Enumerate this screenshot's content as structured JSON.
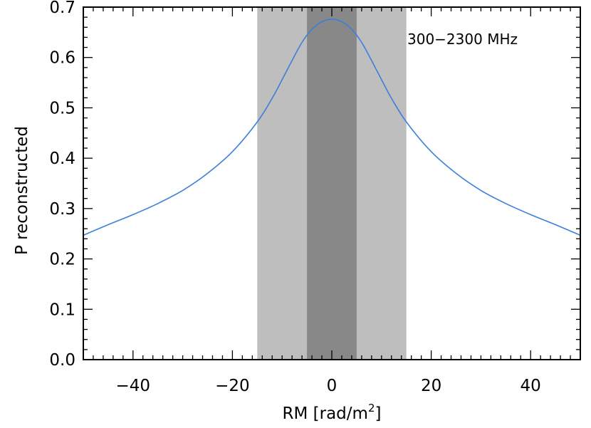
{
  "chart_data": {
    "type": "line",
    "title": "",
    "xlabel": "RM [rad/m",
    "xlabel_sup": "2",
    "xlabel_end": "]",
    "ylabel": "P reconstructed",
    "xlim": [
      -50,
      50
    ],
    "ylim": [
      0.0,
      0.7
    ],
    "x_ticks": [
      -40,
      -20,
      0,
      20,
      40
    ],
    "x_tick_labels": [
      "−40",
      "−20",
      "0",
      "20",
      "40"
    ],
    "y_ticks": [
      0.0,
      0.1,
      0.2,
      0.3,
      0.4,
      0.5,
      0.6,
      0.7
    ],
    "y_tick_labels": [
      "0.0",
      "0.1",
      "0.2",
      "0.3",
      "0.4",
      "0.5",
      "0.6",
      "0.7"
    ],
    "grid": false,
    "annotation": "300−2300 MHz",
    "shaded_bands": [
      {
        "x_from": -15,
        "x_to": 15,
        "color": "#bebebe"
      },
      {
        "x_from": -5,
        "x_to": 5,
        "color": "#888888"
      }
    ],
    "series": [
      {
        "color": "#3d7fd9",
        "x": [
          -50,
          -45,
          -40,
          -35,
          -30,
          -25,
          -20,
          -15,
          -12,
          -10,
          -8,
          -6,
          -4,
          -2,
          0,
          2,
          4,
          6,
          8,
          10,
          12,
          15,
          20,
          25,
          30,
          35,
          40,
          45,
          50
        ],
        "y": [
          0.247,
          0.268,
          0.288,
          0.31,
          0.336,
          0.37,
          0.413,
          0.472,
          0.519,
          0.556,
          0.594,
          0.63,
          0.656,
          0.671,
          0.676,
          0.671,
          0.656,
          0.63,
          0.594,
          0.556,
          0.519,
          0.472,
          0.413,
          0.37,
          0.336,
          0.31,
          0.288,
          0.268,
          0.247
        ]
      }
    ]
  }
}
